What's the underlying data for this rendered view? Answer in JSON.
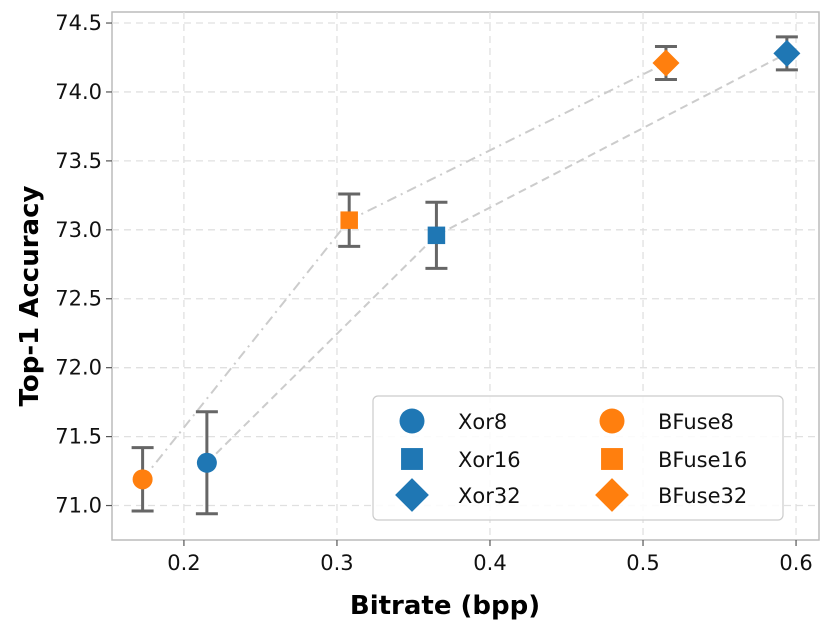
{
  "chart_data": {
    "type": "scatter",
    "title": "",
    "xlabel": "Bitrate (bpp)",
    "ylabel": "Top-1 Accuracy",
    "xlim": [
      0.153,
      0.615
    ],
    "ylim": [
      70.75,
      74.58
    ],
    "xticks": [
      0.2,
      0.3,
      0.4,
      0.5,
      0.6
    ],
    "xtick_labels": [
      "0.2",
      "0.3",
      "0.4",
      "0.5",
      "0.6"
    ],
    "yticks": [
      71.0,
      71.5,
      72.0,
      72.5,
      73.0,
      73.5,
      74.0,
      74.5
    ],
    "ytick_labels": [
      "71.0",
      "71.5",
      "72.0",
      "72.5",
      "73.0",
      "73.5",
      "74.0",
      "74.5"
    ],
    "grid": true,
    "legend_position": "lower-right",
    "series": [
      {
        "name": "Xor",
        "color": "#1f77b4",
        "line_style": "dashed",
        "line_color": "#cccccc",
        "points": [
          {
            "label": "Xor8",
            "marker": "circle",
            "x": 0.215,
            "y": 71.31,
            "err_low": 70.94,
            "err_high": 71.68
          },
          {
            "label": "Xor16",
            "marker": "square",
            "x": 0.365,
            "y": 72.96,
            "err_low": 72.72,
            "err_high": 73.2
          },
          {
            "label": "Xor32",
            "marker": "diamond",
            "x": 0.594,
            "y": 74.28,
            "err_low": 74.16,
            "err_high": 74.4
          }
        ]
      },
      {
        "name": "BFuse",
        "color": "#ff7f0e",
        "line_style": "dashdot",
        "line_color": "#cccccc",
        "points": [
          {
            "label": "BFuse8",
            "marker": "circle",
            "x": 0.173,
            "y": 71.19,
            "err_low": 70.96,
            "err_high": 71.42
          },
          {
            "label": "BFuse16",
            "marker": "square",
            "x": 0.308,
            "y": 73.07,
            "err_low": 72.88,
            "err_high": 73.26
          },
          {
            "label": "BFuse32",
            "marker": "diamond",
            "x": 0.515,
            "y": 74.21,
            "err_low": 74.09,
            "err_high": 74.33
          }
        ]
      }
    ],
    "errorbar_color": "#666666"
  }
}
